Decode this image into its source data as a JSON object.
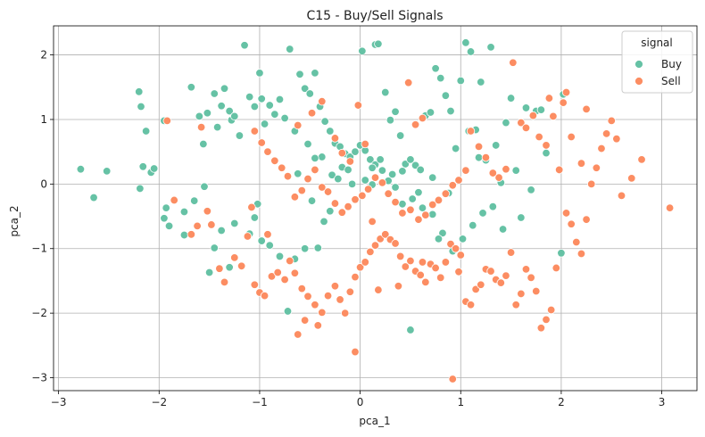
{
  "chart_data": {
    "type": "scatter",
    "title": "C15 - Buy/Sell Signals",
    "xlabel": "pca_1",
    "ylabel": "pca_2",
    "xlim": [
      -3.05,
      3.35
    ],
    "ylim": [
      -3.2,
      2.45
    ],
    "xticks": [
      -3,
      -2,
      -1,
      0,
      1,
      2,
      3
    ],
    "yticks": [
      -3,
      -2,
      -1,
      0,
      1,
      2
    ],
    "xtick_labels": [
      "−3",
      "−2",
      "−1",
      "0",
      "1",
      "2",
      "3"
    ],
    "ytick_labels": [
      "−3",
      "−2",
      "−1",
      "0",
      "1",
      "2"
    ],
    "grid": true,
    "legend": {
      "title": "signal",
      "position": "top-right"
    },
    "series": [
      {
        "name": "Buy",
        "color": "#66c2a5",
        "points": [
          [
            -2.78,
            0.23
          ],
          [
            -2.65,
            -0.21
          ],
          [
            -2.52,
            0.2
          ],
          [
            -2.2,
            1.43
          ],
          [
            -2.18,
            1.2
          ],
          [
            -2.16,
            0.27
          ],
          [
            -2.13,
            0.82
          ],
          [
            -2.08,
            0.18
          ],
          [
            -2.05,
            0.24
          ],
          [
            -2.19,
            -0.07
          ],
          [
            -1.95,
            0.98
          ],
          [
            -1.93,
            -0.37
          ],
          [
            -1.95,
            -0.53
          ],
          [
            -1.9,
            -0.65
          ],
          [
            -1.68,
            1.5
          ],
          [
            -1.6,
            1.05
          ],
          [
            -1.56,
            0.62
          ],
          [
            -1.52,
            1.1
          ],
          [
            -1.45,
            1.4
          ],
          [
            -1.42,
            0.88
          ],
          [
            -1.38,
            1.21
          ],
          [
            -1.35,
            1.48
          ],
          [
            -1.3,
            1.13
          ],
          [
            -1.28,
            0.99
          ],
          [
            -1.25,
            1.05
          ],
          [
            -1.2,
            0.75
          ],
          [
            -1.15,
            2.15
          ],
          [
            -1.1,
            1.35
          ],
          [
            -1.05,
            1.2
          ],
          [
            -1.0,
            1.72
          ],
          [
            -0.98,
            1.32
          ],
          [
            -0.95,
            0.93
          ],
          [
            -0.9,
            1.22
          ],
          [
            -0.85,
            1.08
          ],
          [
            -0.8,
            1.31
          ],
          [
            -0.75,
            1.02
          ],
          [
            -0.7,
            2.09
          ],
          [
            -0.65,
            0.82
          ],
          [
            -0.6,
            1.7
          ],
          [
            -0.55,
            1.48
          ],
          [
            -0.5,
            1.4
          ],
          [
            -0.45,
            1.72
          ],
          [
            -0.4,
            1.2
          ],
          [
            -0.35,
            0.97
          ],
          [
            -0.3,
            0.82
          ],
          [
            -0.25,
            0.63
          ],
          [
            -0.2,
            0.58
          ],
          [
            -0.15,
            0.47
          ],
          [
            -0.1,
            0.42
          ],
          [
            -0.05,
            0.5
          ],
          [
            0.0,
            0.6
          ],
          [
            0.05,
            0.52
          ],
          [
            0.1,
            0.38
          ],
          [
            0.15,
            0.3
          ],
          [
            0.2,
            0.38
          ],
          [
            0.25,
            1.42
          ],
          [
            0.3,
            0.99
          ],
          [
            0.35,
            1.12
          ],
          [
            0.4,
            0.75
          ],
          [
            0.45,
            0.31
          ],
          [
            0.5,
            0.38
          ],
          [
            0.55,
            0.29
          ],
          [
            0.6,
            0.22
          ],
          [
            0.65,
            1.06
          ],
          [
            0.7,
            1.11
          ],
          [
            0.75,
            1.79
          ],
          [
            0.8,
            1.64
          ],
          [
            0.85,
            1.37
          ],
          [
            0.9,
            1.13
          ],
          [
            0.95,
            0.55
          ],
          [
            1.0,
            1.6
          ],
          [
            1.05,
            2.19
          ],
          [
            1.1,
            2.05
          ],
          [
            1.15,
            0.84
          ],
          [
            1.2,
            1.58
          ],
          [
            1.25,
            0.37
          ],
          [
            1.3,
            2.12
          ],
          [
            1.35,
            0.6
          ],
          [
            1.4,
            0.02
          ],
          [
            1.45,
            0.95
          ],
          [
            1.5,
            1.33
          ],
          [
            1.55,
            0.21
          ],
          [
            1.6,
            -0.52
          ],
          [
            1.65,
            1.18
          ],
          [
            1.7,
            -0.09
          ],
          [
            1.75,
            1.13
          ],
          [
            1.8,
            1.15
          ],
          [
            1.85,
            0.48
          ],
          [
            2.0,
            -1.07
          ],
          [
            2.02,
            1.39
          ],
          [
            0.15,
            2.16
          ],
          [
            0.18,
            2.17
          ],
          [
            0.02,
            2.06
          ],
          [
            0.5,
            -2.26
          ],
          [
            -0.72,
            -1.97
          ],
          [
            -1.3,
            -1.29
          ],
          [
            -1.5,
            -1.37
          ],
          [
            -1.45,
            -0.99
          ],
          [
            -1.38,
            -0.72
          ],
          [
            -1.75,
            -0.79
          ],
          [
            -1.1,
            -0.77
          ],
          [
            -1.05,
            -0.52
          ],
          [
            -0.98,
            -0.88
          ],
          [
            -0.9,
            -0.95
          ],
          [
            -0.8,
            -1.12
          ],
          [
            -0.65,
            -1.16
          ],
          [
            -0.55,
            -1.0
          ],
          [
            -0.42,
            -0.99
          ],
          [
            -0.36,
            -0.58
          ],
          [
            -0.3,
            -0.42
          ],
          [
            -0.28,
            0.14
          ],
          [
            -0.22,
            0.08
          ],
          [
            -0.18,
            0.26
          ],
          [
            -0.12,
            0.22
          ],
          [
            -0.08,
            0.0
          ],
          [
            0.05,
            0.06
          ],
          [
            0.12,
            -0.01
          ],
          [
            0.22,
            0.21
          ],
          [
            0.32,
            0.15
          ],
          [
            0.42,
            -0.31
          ],
          [
            0.52,
            -0.23
          ],
          [
            0.62,
            -0.37
          ],
          [
            0.72,
            -0.47
          ],
          [
            0.82,
            -0.76
          ],
          [
            0.92,
            -1.04
          ],
          [
            1.02,
            -0.85
          ],
          [
            1.12,
            -0.64
          ],
          [
            1.22,
            -0.45
          ],
          [
            1.32,
            -0.35
          ],
          [
            1.42,
            -0.7
          ],
          [
            -1.55,
            -0.04
          ],
          [
            -1.65,
            -0.26
          ],
          [
            -1.75,
            -0.43
          ],
          [
            -1.25,
            -0.61
          ],
          [
            -1.02,
            -0.31
          ],
          [
            -0.48,
            -0.26
          ],
          [
            -0.38,
            0.42
          ],
          [
            -0.62,
            0.16
          ],
          [
            -0.52,
            0.62
          ],
          [
            -0.45,
            0.4
          ],
          [
            0.12,
            0.25
          ],
          [
            0.28,
            0.05
          ],
          [
            0.42,
            0.2
          ],
          [
            0.35,
            -0.05
          ],
          [
            0.58,
            -0.13
          ],
          [
            0.72,
            0.1
          ],
          [
            0.88,
            -0.14
          ],
          [
            0.78,
            -0.85
          ],
          [
            1.08,
            0.82
          ],
          [
            1.18,
            0.41
          ]
        ]
      },
      {
        "name": "Sell",
        "color": "#fc8d62",
        "points": [
          [
            -1.92,
            0.98
          ],
          [
            -1.85,
            -0.25
          ],
          [
            -1.68,
            -0.78
          ],
          [
            -1.62,
            -0.65
          ],
          [
            -1.58,
            0.88
          ],
          [
            -1.52,
            -0.42
          ],
          [
            -1.48,
            -0.63
          ],
          [
            -1.4,
            -1.31
          ],
          [
            -1.35,
            -1.52
          ],
          [
            -1.25,
            -1.14
          ],
          [
            -1.18,
            -1.27
          ],
          [
            -1.12,
            -0.81
          ],
          [
            -1.05,
            -1.56
          ],
          [
            -1.0,
            -1.68
          ],
          [
            -0.95,
            -1.73
          ],
          [
            -0.88,
            -1.43
          ],
          [
            -0.82,
            -1.37
          ],
          [
            -0.75,
            -1.48
          ],
          [
            -0.7,
            -1.19
          ],
          [
            -0.65,
            -1.38
          ],
          [
            -0.58,
            -1.62
          ],
          [
            -0.52,
            -1.74
          ],
          [
            -0.45,
            -1.87
          ],
          [
            -0.42,
            -2.19
          ],
          [
            -0.38,
            -1.99
          ],
          [
            -0.32,
            -1.73
          ],
          [
            -0.25,
            -1.58
          ],
          [
            -0.2,
            -1.79
          ],
          [
            -0.15,
            -2.0
          ],
          [
            -0.1,
            -1.67
          ],
          [
            -0.05,
            -1.44
          ],
          [
            0.0,
            -1.29
          ],
          [
            0.05,
            -1.21
          ],
          [
            0.1,
            -1.05
          ],
          [
            0.15,
            -0.95
          ],
          [
            0.2,
            -0.85
          ],
          [
            0.25,
            -0.78
          ],
          [
            0.3,
            -0.86
          ],
          [
            0.35,
            -0.92
          ],
          [
            0.4,
            -1.12
          ],
          [
            0.45,
            -1.28
          ],
          [
            0.5,
            -1.19
          ],
          [
            0.55,
            -1.35
          ],
          [
            0.6,
            -1.41
          ],
          [
            0.65,
            -1.52
          ],
          [
            0.7,
            -1.24
          ],
          [
            0.75,
            -1.3
          ],
          [
            0.8,
            -1.45
          ],
          [
            0.85,
            -1.21
          ],
          [
            0.9,
            -0.93
          ],
          [
            0.95,
            -1.0
          ],
          [
            1.0,
            -1.1
          ],
          [
            1.05,
            -1.82
          ],
          [
            1.1,
            -1.87
          ],
          [
            1.15,
            -1.63
          ],
          [
            1.2,
            -1.56
          ],
          [
            1.25,
            -1.32
          ],
          [
            1.3,
            -1.35
          ],
          [
            1.35,
            -1.48
          ],
          [
            1.4,
            -1.53
          ],
          [
            1.45,
            -1.42
          ],
          [
            1.5,
            -1.06
          ],
          [
            1.55,
            -1.87
          ],
          [
            1.6,
            -1.7
          ],
          [
            1.65,
            -1.32
          ],
          [
            1.7,
            -1.45
          ],
          [
            1.75,
            -1.66
          ],
          [
            1.8,
            -2.23
          ],
          [
            1.85,
            -2.1
          ],
          [
            1.9,
            -1.95
          ],
          [
            1.95,
            -1.3
          ],
          [
            2.05,
            -0.45
          ],
          [
            2.1,
            -0.62
          ],
          [
            2.15,
            -0.9
          ],
          [
            2.2,
            -1.08
          ],
          [
            2.25,
            -0.55
          ],
          [
            2.3,
            0.0
          ],
          [
            2.35,
            0.25
          ],
          [
            2.4,
            0.55
          ],
          [
            2.45,
            0.78
          ],
          [
            2.5,
            0.98
          ],
          [
            2.55,
            0.7
          ],
          [
            2.6,
            -0.18
          ],
          [
            2.7,
            0.09
          ],
          [
            2.8,
            0.38
          ],
          [
            3.08,
            -0.37
          ],
          [
            2.05,
            1.42
          ],
          [
            2.1,
            0.73
          ],
          [
            2.2,
            0.32
          ],
          [
            2.25,
            1.16
          ],
          [
            1.52,
            1.88
          ],
          [
            1.6,
            0.95
          ],
          [
            1.65,
            0.87
          ],
          [
            1.72,
            1.06
          ],
          [
            1.78,
            0.73
          ],
          [
            1.85,
            0.6
          ],
          [
            1.92,
            1.05
          ],
          [
            1.98,
            0.22
          ],
          [
            2.02,
            1.26
          ],
          [
            1.88,
            1.33
          ],
          [
            1.45,
            0.23
          ],
          [
            1.38,
            0.1
          ],
          [
            1.32,
            0.17
          ],
          [
            1.25,
            0.41
          ],
          [
            1.18,
            0.58
          ],
          [
            1.1,
            0.82
          ],
          [
            1.05,
            0.21
          ],
          [
            0.98,
            0.06
          ],
          [
            0.92,
            -0.02
          ],
          [
            0.85,
            -0.15
          ],
          [
            0.78,
            -0.25
          ],
          [
            0.72,
            -0.32
          ],
          [
            0.65,
            -0.48
          ],
          [
            0.58,
            -0.55
          ],
          [
            0.5,
            -0.4
          ],
          [
            0.42,
            -0.45
          ],
          [
            0.35,
            -0.28
          ],
          [
            0.28,
            -0.15
          ],
          [
            0.22,
            0.02
          ],
          [
            0.15,
            0.1
          ],
          [
            0.08,
            -0.08
          ],
          [
            0.02,
            -0.18
          ],
          [
            -0.05,
            -0.24
          ],
          [
            -0.12,
            -0.35
          ],
          [
            -0.18,
            -0.44
          ],
          [
            -0.25,
            -0.3
          ],
          [
            -0.32,
            -0.12
          ],
          [
            -0.38,
            -0.05
          ],
          [
            -0.45,
            0.22
          ],
          [
            -0.52,
            0.08
          ],
          [
            -0.58,
            -0.1
          ],
          [
            -0.65,
            -0.2
          ],
          [
            -0.72,
            0.12
          ],
          [
            -0.78,
            0.25
          ],
          [
            -0.85,
            0.36
          ],
          [
            -0.92,
            0.5
          ],
          [
            -0.98,
            0.64
          ],
          [
            -1.05,
            0.82
          ],
          [
            -0.62,
            0.91
          ],
          [
            -0.48,
            1.1
          ],
          [
            -0.38,
            1.28
          ],
          [
            -0.25,
            0.71
          ],
          [
            -0.18,
            0.48
          ],
          [
            -0.1,
            0.35
          ],
          [
            -0.02,
            1.22
          ],
          [
            0.05,
            0.62
          ],
          [
            0.12,
            -0.58
          ],
          [
            0.48,
            1.57
          ],
          [
            0.55,
            0.92
          ],
          [
            0.62,
            1.02
          ],
          [
            0.92,
            -3.02
          ],
          [
            -0.05,
            -2.6
          ],
          [
            -0.62,
            -2.33
          ],
          [
            -0.55,
            -2.11
          ],
          [
            -0.92,
            -0.78
          ],
          [
            -1.08,
            -0.36
          ],
          [
            0.18,
            -1.64
          ],
          [
            0.38,
            -1.58
          ],
          [
            0.62,
            -1.21
          ],
          [
            0.98,
            -1.36
          ]
        ]
      }
    ]
  }
}
